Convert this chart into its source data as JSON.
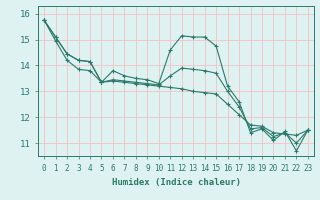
{
  "xlabel": "Humidex (Indice chaleur)",
  "background_color": "#dff2f2",
  "grid_color": "#f0c8c8",
  "line_color": "#2a7a6a",
  "xlim": [
    -0.5,
    23.5
  ],
  "ylim": [
    10.5,
    16.3
  ],
  "yticks": [
    11,
    12,
    13,
    14,
    15,
    16
  ],
  "xtick_labels": [
    "0",
    "1",
    "2",
    "3",
    "4",
    "5",
    "6",
    "7",
    "8",
    "9",
    "10",
    "11",
    "12",
    "13",
    "14",
    "15",
    "16",
    "17",
    "18",
    "19",
    "20",
    "21",
    "22",
    "23"
  ],
  "series_zigzag": [
    15.75,
    15.1,
    14.45,
    14.2,
    14.15,
    13.35,
    13.8,
    13.6,
    13.5,
    13.45,
    13.3,
    14.6,
    15.15,
    15.1,
    15.1,
    14.75,
    13.2,
    12.6,
    11.4,
    11.55,
    11.1,
    11.45,
    10.7,
    11.5
  ],
  "series_line1": [
    15.75,
    15.1,
    14.45,
    14.2,
    14.15,
    13.35,
    13.4,
    13.35,
    13.3,
    13.25,
    13.2,
    13.15,
    13.1,
    13.0,
    12.95,
    12.9,
    12.5,
    12.1,
    11.7,
    11.65,
    11.4,
    11.35,
    11.3,
    11.5
  ],
  "series_line2": [
    15.75,
    14.95,
    14.2,
    13.85,
    13.8,
    13.35,
    13.45,
    13.4,
    13.35,
    13.3,
    13.25,
    13.6,
    13.9,
    13.85,
    13.8,
    13.7,
    13.0,
    12.4,
    11.55,
    11.6,
    11.25,
    11.4,
    11.0,
    11.5
  ]
}
